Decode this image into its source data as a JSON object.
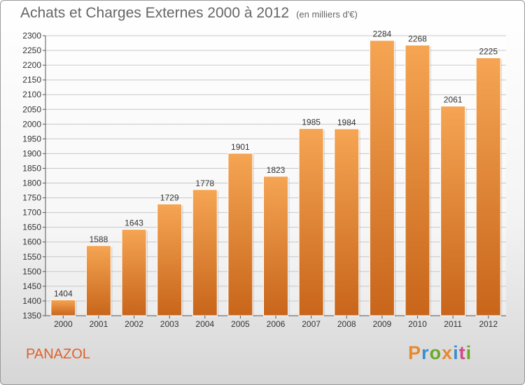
{
  "chart_data": {
    "type": "bar",
    "title": "Achats et Charges Externes 2000 à 2012",
    "subtitle": "(en milliers d'€)",
    "categories": [
      "2000",
      "2001",
      "2002",
      "2003",
      "2004",
      "2005",
      "2006",
      "2007",
      "2008",
      "2009",
      "2010",
      "2011",
      "2012"
    ],
    "values": [
      1404,
      1588,
      1643,
      1729,
      1778,
      1901,
      1823,
      1985,
      1984,
      2284,
      2268,
      2061,
      2225
    ],
    "ylim": [
      1350,
      2300
    ],
    "ytick_step": 50,
    "grid": true,
    "bar_color_top": "#f5a553",
    "bar_color_bottom": "#c8651a",
    "xlabel": "",
    "ylabel": ""
  },
  "footer": {
    "city": "PANAZOL",
    "logo_text": "Proxiti",
    "logo_colors": [
      "#e8892e",
      "#3a8fd0",
      "#6aaa2a",
      "#e8892e",
      "#3a8fd0",
      "#d04a8a",
      "#6aaa2a"
    ]
  }
}
